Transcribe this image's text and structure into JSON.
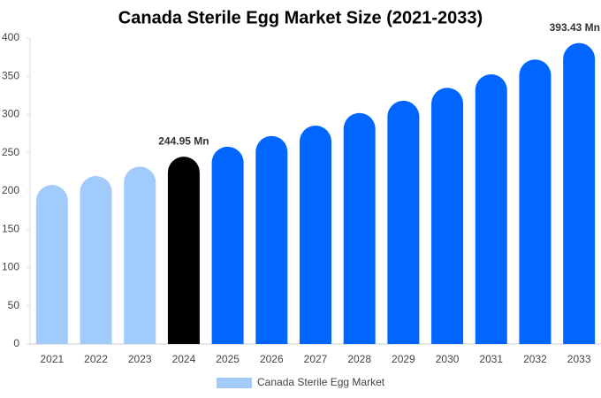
{
  "chart_data": {
    "type": "bar",
    "title": "Canada Sterile Egg Market Size (2021-2033)",
    "categories": [
      "2021",
      "2022",
      "2023",
      "2024",
      "2025",
      "2026",
      "2027",
      "2028",
      "2029",
      "2030",
      "2031",
      "2032",
      "2033"
    ],
    "series": [
      {
        "name": "Canada Sterile Egg Market",
        "color": "#a0cbfb",
        "colors": [
          "#a0cbfb",
          "#a0cbfb",
          "#a0cbfb",
          "#000000",
          "#0066ff",
          "#0066ff",
          "#0066ff",
          "#0066ff",
          "#0066ff",
          "#0066ff",
          "#0066ff",
          "#0066ff",
          "#0066ff"
        ],
        "values": [
          208,
          219.7,
          232,
          244.95,
          258,
          272,
          285.5,
          302,
          318,
          335,
          352.6,
          372,
          393.43
        ],
        "value_labels": [
          null,
          null,
          null,
          "244.95 Mn",
          null,
          null,
          null,
          null,
          null,
          null,
          null,
          null,
          "393.43 Mn"
        ]
      }
    ],
    "ylim": [
      0,
      400
    ],
    "yticks": [
      0,
      50,
      100,
      150,
      200,
      250,
      300,
      350,
      400
    ],
    "grid": false
  }
}
